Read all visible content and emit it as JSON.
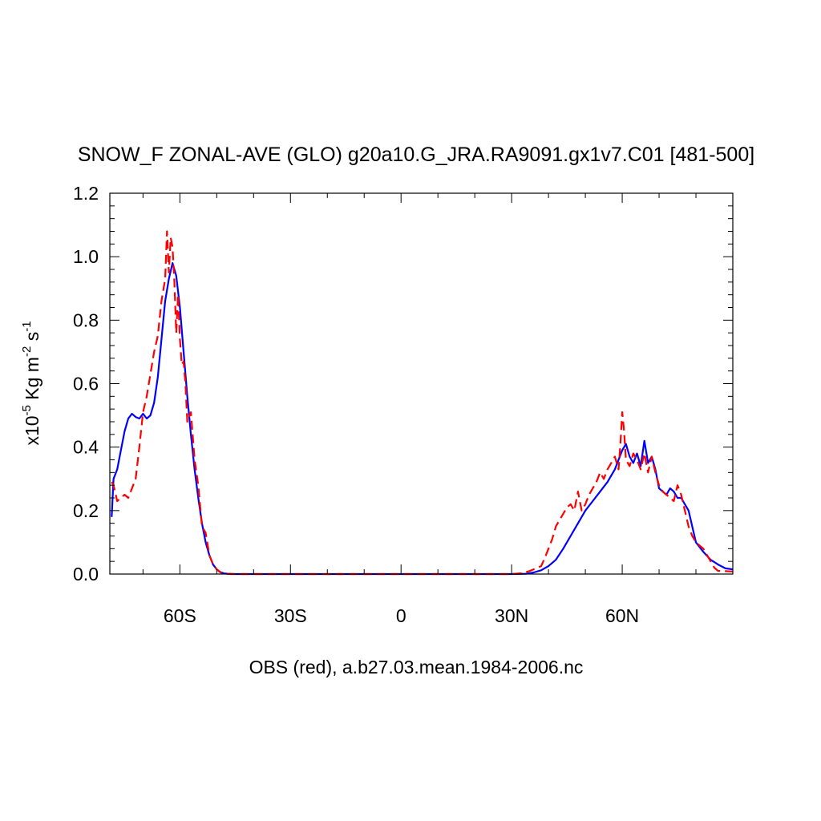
{
  "chart_data": {
    "type": "line",
    "title": "SNOW_F ZONAL-AVE (GLO) g20a10.G_JRA.RA9091.gx1v7.C01 [481-500]",
    "xlabel": "OBS (red), a.b27.03.mean.1984-2006.nc",
    "ylabel": {
      "prefix": "x10",
      "exp1": "-5",
      "unit1": " Kg m",
      "exp2": "-2",
      "unit2": " s",
      "exp3": "-1"
    },
    "xlim": [
      -79,
      90
    ],
    "ylim": [
      0,
      1.2
    ],
    "grid": false,
    "x_ticks": [
      {
        "value": -60,
        "label": "60S"
      },
      {
        "value": -30,
        "label": "30S"
      },
      {
        "value": 0,
        "label": "0"
      },
      {
        "value": 30,
        "label": "30N"
      },
      {
        "value": 60,
        "label": "60N"
      }
    ],
    "y_ticks": [
      {
        "value": 0.0,
        "label": "0.0"
      },
      {
        "value": 0.2,
        "label": "0.2"
      },
      {
        "value": 0.4,
        "label": "0.4"
      },
      {
        "value": 0.6,
        "label": "0.6"
      },
      {
        "value": 0.8,
        "label": "0.8"
      },
      {
        "value": 1.0,
        "label": "1.0"
      },
      {
        "value": 1.2,
        "label": "1.2"
      }
    ],
    "series": [
      {
        "color": "#0000ff",
        "dash": "solid",
        "x": [
          -78.5,
          -78,
          -77,
          -76,
          -75,
          -74,
          -73,
          -72,
          -71,
          -70,
          -69,
          -68,
          -67,
          -66,
          -65,
          -64,
          -63,
          -62,
          -61,
          -60,
          -59,
          -58,
          -57,
          -56,
          -55,
          -54,
          -53,
          -52,
          -51,
          -50,
          -49,
          -48,
          -47,
          -46,
          -45,
          -40,
          -30,
          -20,
          -10,
          0,
          10,
          20,
          30,
          34,
          36,
          38,
          40,
          42,
          44,
          46,
          48,
          50,
          52,
          54,
          56,
          58,
          59,
          60,
          61,
          62,
          63,
          64,
          65,
          66,
          67,
          68,
          69,
          70,
          71,
          72,
          73,
          74,
          75,
          76,
          77,
          78,
          79,
          80,
          82,
          84,
          86,
          88,
          90
        ],
        "y": [
          0.18,
          0.3,
          0.33,
          0.39,
          0.45,
          0.49,
          0.505,
          0.495,
          0.49,
          0.505,
          0.49,
          0.5,
          0.54,
          0.62,
          0.74,
          0.86,
          0.93,
          0.98,
          0.94,
          0.84,
          0.7,
          0.56,
          0.44,
          0.33,
          0.24,
          0.16,
          0.1,
          0.06,
          0.03,
          0.015,
          0.006,
          0.002,
          0.001,
          0.0005,
          0.0,
          0.0,
          0.0,
          0.0,
          0.0,
          0.0,
          0.0,
          0.0,
          0.0,
          0.001,
          0.005,
          0.012,
          0.025,
          0.045,
          0.08,
          0.12,
          0.16,
          0.2,
          0.23,
          0.26,
          0.29,
          0.33,
          0.36,
          0.39,
          0.41,
          0.37,
          0.35,
          0.38,
          0.34,
          0.42,
          0.35,
          0.37,
          0.33,
          0.27,
          0.26,
          0.25,
          0.27,
          0.26,
          0.24,
          0.24,
          0.22,
          0.2,
          0.15,
          0.1,
          0.07,
          0.045,
          0.03,
          0.018,
          0.015
        ]
      },
      {
        "color": "#ff0000",
        "dash": "dashed",
        "x": [
          -78.5,
          -78,
          -77,
          -76,
          -75,
          -74,
          -73,
          -72,
          -71,
          -70,
          -69,
          -68,
          -67,
          -66,
          -65,
          -64,
          -63.5,
          -63,
          -62.5,
          -62,
          -61.5,
          -61,
          -60.5,
          -60,
          -59.5,
          -59,
          -58.5,
          -58,
          -57,
          -56,
          -55,
          -54,
          -53,
          -52,
          -51,
          -50,
          -49,
          -48,
          -47,
          -46,
          -45,
          -40,
          -30,
          -20,
          -10,
          0,
          10,
          20,
          30,
          33,
          35,
          37,
          38,
          39,
          40,
          41,
          42,
          43,
          44,
          45,
          46,
          47,
          48,
          49,
          50,
          51,
          52,
          53,
          54,
          55,
          56,
          57,
          58,
          59,
          59.5,
          60,
          60.5,
          61,
          62,
          63,
          64,
          65,
          66,
          67,
          68,
          69,
          70,
          71,
          72,
          73,
          74,
          75,
          76,
          77,
          78,
          79,
          80,
          81,
          82,
          83,
          84,
          85,
          86,
          90
        ],
        "y": [
          0.29,
          0.28,
          0.23,
          0.24,
          0.25,
          0.24,
          0.27,
          0.3,
          0.4,
          0.51,
          0.56,
          0.63,
          0.7,
          0.75,
          0.86,
          0.93,
          1.08,
          0.95,
          1.06,
          1.03,
          0.92,
          0.76,
          0.88,
          0.74,
          0.66,
          0.67,
          0.6,
          0.48,
          0.51,
          0.36,
          0.28,
          0.15,
          0.13,
          0.06,
          0.03,
          0.015,
          0.005,
          0.001,
          0.0005,
          0.0,
          0.0,
          0.0,
          0.0,
          0.0,
          0.0,
          0.0,
          0.0,
          0.0,
          0.0,
          0.003,
          0.01,
          0.02,
          0.025,
          0.05,
          0.08,
          0.11,
          0.15,
          0.17,
          0.19,
          0.21,
          0.22,
          0.2,
          0.26,
          0.2,
          0.22,
          0.25,
          0.27,
          0.29,
          0.32,
          0.3,
          0.33,
          0.35,
          0.37,
          0.33,
          0.41,
          0.51,
          0.45,
          0.36,
          0.34,
          0.38,
          0.36,
          0.33,
          0.38,
          0.32,
          0.37,
          0.32,
          0.28,
          0.26,
          0.25,
          0.24,
          0.23,
          0.28,
          0.25,
          0.2,
          0.15,
          0.12,
          0.1,
          0.09,
          0.08,
          0.06,
          0.04,
          0.02,
          0.01,
          0.008
        ]
      }
    ]
  }
}
